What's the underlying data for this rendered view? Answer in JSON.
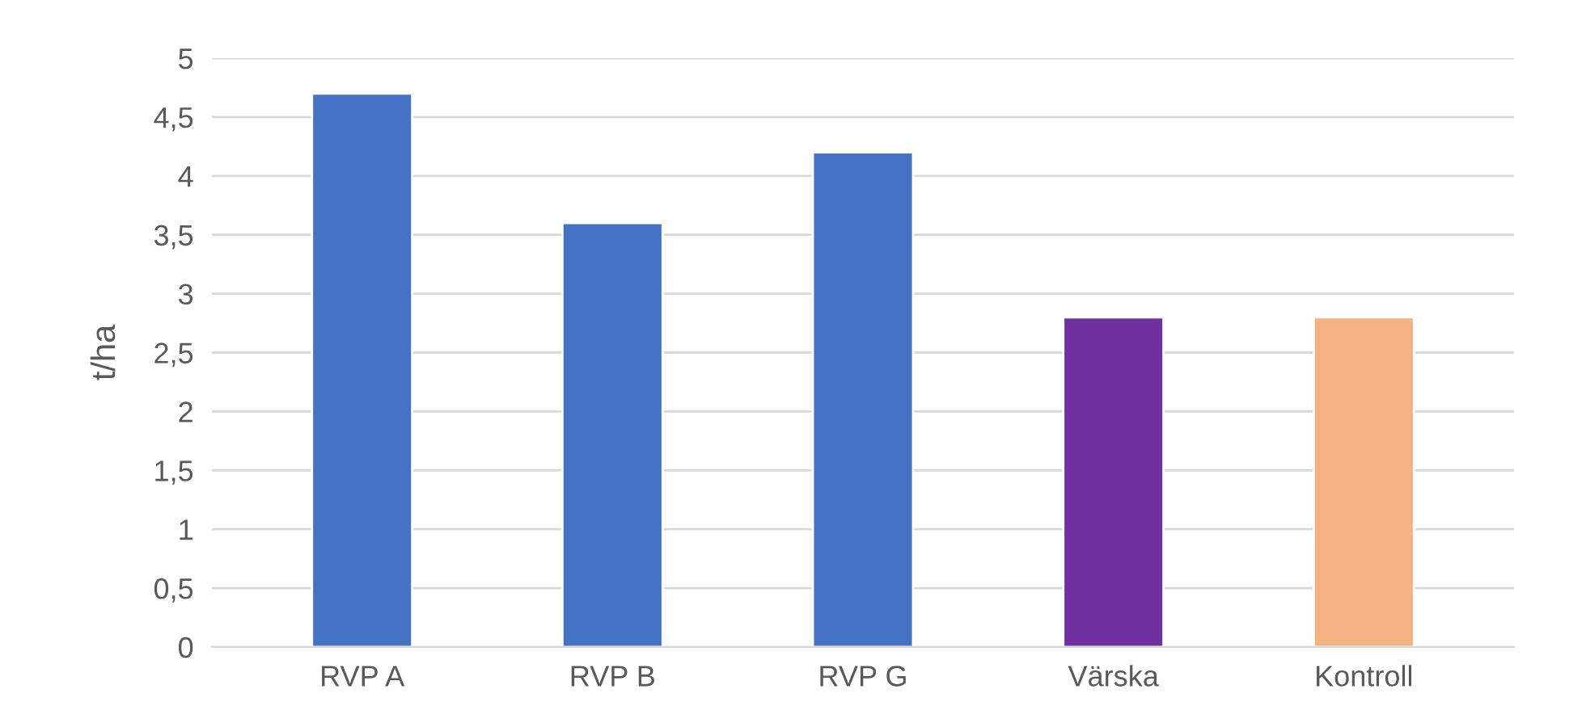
{
  "chart_data": {
    "type": "bar",
    "ylabel": "t/ha",
    "categories": [
      "RVP A",
      "RVP B",
      "RVP G",
      "Värska",
      "Kontroll"
    ],
    "values": [
      4.7,
      3.6,
      4.2,
      2.8,
      2.8
    ],
    "colors": [
      "#4472c4",
      "#4472c4",
      "#4472c4",
      "#7030a0",
      "#f4b183"
    ],
    "ylim": [
      0,
      5
    ],
    "yticks": [
      0,
      {
        "value": 0.5,
        "label": "0,5"
      },
      1,
      {
        "value": 1.5,
        "label": "1,5"
      },
      2,
      {
        "value": 2.5,
        "label": "2,5"
      },
      3,
      {
        "value": 3.5,
        "label": "3,5"
      },
      4,
      {
        "value": 4.5,
        "label": "4,5"
      },
      5
    ],
    "grid": "y"
  }
}
